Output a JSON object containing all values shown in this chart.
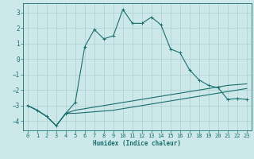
{
  "xlabel": "Humidex (Indice chaleur)",
  "background_color": "#cce8e8",
  "grid_color": "#aacfcf",
  "line_color": "#1a6e6e",
  "xlim": [
    -0.5,
    23.5
  ],
  "ylim": [
    -4.6,
    3.6
  ],
  "xticks": [
    0,
    1,
    2,
    3,
    4,
    5,
    6,
    7,
    8,
    9,
    10,
    11,
    12,
    13,
    14,
    15,
    16,
    17,
    18,
    19,
    20,
    21,
    22,
    23
  ],
  "yticks": [
    -4,
    -3,
    -2,
    -1,
    0,
    1,
    2,
    3
  ],
  "curve1_x": [
    0,
    1,
    2,
    3,
    4,
    5,
    6,
    7,
    8,
    9,
    10,
    11,
    12,
    13,
    14,
    15,
    16,
    17,
    18,
    19,
    20,
    21,
    22,
    23
  ],
  "curve1_y": [
    -3.0,
    -3.3,
    -3.7,
    -4.3,
    -3.5,
    -2.8,
    0.8,
    1.9,
    1.3,
    1.5,
    3.2,
    2.3,
    2.3,
    2.7,
    2.2,
    0.65,
    0.4,
    -0.7,
    -1.35,
    -1.7,
    -1.85,
    -2.6,
    -2.55,
    -2.6
  ],
  "curve2_x": [
    0,
    1,
    2,
    3,
    4,
    5,
    6,
    7,
    8,
    9,
    10,
    11,
    12,
    13,
    14,
    15,
    16,
    17,
    18,
    19,
    20,
    21,
    22,
    23
  ],
  "curve2_y": [
    -3.0,
    -3.3,
    -3.7,
    -4.3,
    -3.5,
    -3.3,
    -3.2,
    -3.1,
    -3.0,
    -2.9,
    -2.8,
    -2.7,
    -2.6,
    -2.5,
    -2.4,
    -2.3,
    -2.2,
    -2.1,
    -2.0,
    -1.9,
    -1.8,
    -1.7,
    -1.65,
    -1.6
  ],
  "curve3_x": [
    0,
    1,
    2,
    3,
    4,
    5,
    6,
    7,
    8,
    9,
    10,
    11,
    12,
    13,
    14,
    15,
    16,
    17,
    18,
    19,
    20,
    21,
    22,
    23
  ],
  "curve3_y": [
    -3.0,
    -3.3,
    -3.7,
    -4.3,
    -3.5,
    -3.5,
    -3.45,
    -3.4,
    -3.35,
    -3.3,
    -3.2,
    -3.1,
    -3.0,
    -2.9,
    -2.8,
    -2.7,
    -2.6,
    -2.5,
    -2.4,
    -2.3,
    -2.2,
    -2.1,
    -2.0,
    -1.9
  ]
}
